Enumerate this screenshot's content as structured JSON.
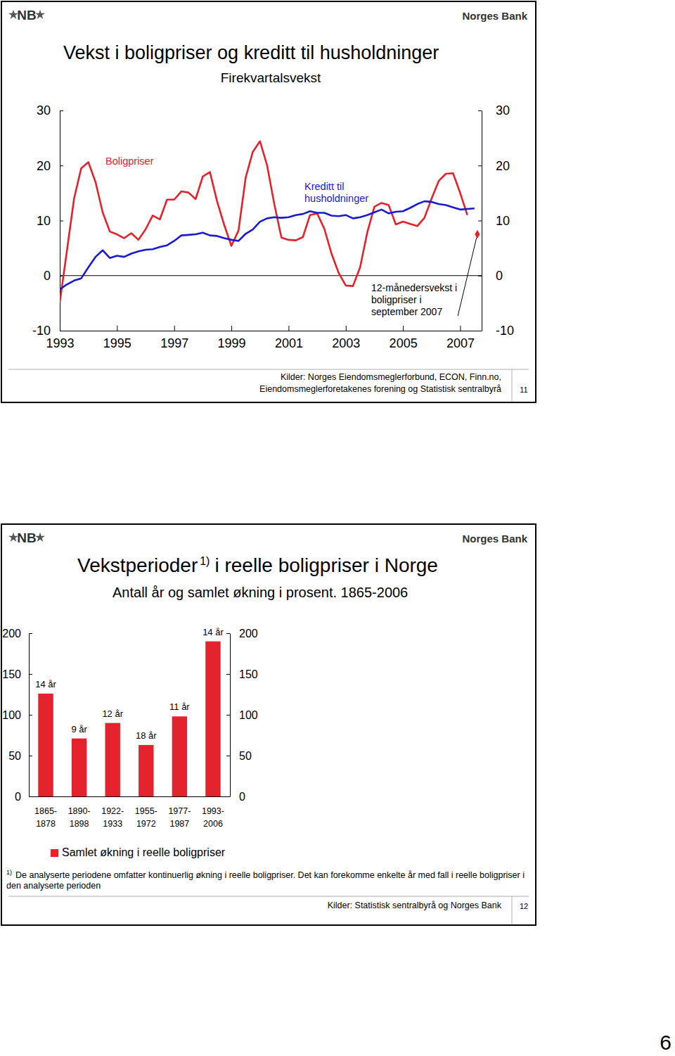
{
  "page_number": 6,
  "chart_data": [
    {
      "type": "line",
      "logo": "NB",
      "header": "Norges Bank",
      "title": "Vekst i boligpriser og kreditt til husholdninger",
      "subtitle": "Firekvartalsvekst",
      "x": [
        1993,
        1993.25,
        1993.5,
        1993.75,
        1994,
        1994.25,
        1994.5,
        1994.75,
        1995,
        1995.25,
        1995.5,
        1995.75,
        1996,
        1996.25,
        1996.5,
        1996.75,
        1997,
        1997.25,
        1997.5,
        1997.75,
        1998,
        1998.25,
        1998.5,
        1998.75,
        1999,
        1999.25,
        1999.5,
        1999.75,
        2000,
        2000.25,
        2000.5,
        2000.75,
        2001,
        2001.25,
        2001.5,
        2001.75,
        2002,
        2002.25,
        2002.5,
        2002.75,
        2003,
        2003.25,
        2003.5,
        2003.75,
        2004,
        2004.25,
        2004.5,
        2004.75,
        2005,
        2005.25,
        2005.5,
        2005.75,
        2006,
        2006.25,
        2006.5,
        2006.75,
        2007,
        2007.25,
        2007.5
      ],
      "xlim": [
        1993,
        2007.75
      ],
      "xticks": [
        1993,
        1995,
        1997,
        1999,
        2001,
        2003,
        2005,
        2007
      ],
      "ylim": [
        -10,
        30
      ],
      "yticks": [
        -10,
        0,
        10,
        20,
        30
      ],
      "y2lim": [
        -10,
        30
      ],
      "y2ticks": [
        -10,
        0,
        10,
        20,
        30
      ],
      "series": [
        {
          "name": "Boligpriser",
          "color": "#e3222b",
          "values": [
            -4.9,
            4.5,
            14.0,
            19.5,
            20.6,
            17.0,
            11.5,
            8.0,
            7.5,
            6.8,
            7.7,
            6.5,
            8.4,
            10.9,
            10.2,
            13.8,
            13.8,
            15.3,
            15.1,
            13.9,
            18.0,
            18.8,
            13.5,
            9.2,
            5.4,
            8.2,
            17.8,
            22.5,
            24.4,
            20.0,
            13.0,
            6.9,
            6.5,
            6.4,
            7.0,
            11.0,
            11.3,
            8.5,
            4.0,
            0.5,
            -1.8,
            -1.9,
            1.5,
            7.8,
            12.5,
            13.2,
            12.8,
            9.3,
            9.8,
            9.4,
            9.0,
            10.5,
            14.0,
            17.2,
            18.5,
            18.6,
            15.0,
            11.0,
            null
          ]
        },
        {
          "name": "Kreditt til husholdninger",
          "color": "#1a1ad1",
          "values": [
            -2.5,
            -1.6,
            -0.9,
            -0.5,
            1.5,
            3.4,
            4.6,
            3.2,
            3.6,
            3.4,
            4.0,
            4.4,
            4.7,
            4.8,
            5.2,
            5.5,
            6.3,
            7.3,
            7.4,
            7.5,
            7.8,
            7.3,
            7.2,
            6.8,
            6.5,
            6.3,
            7.6,
            8.4,
            9.8,
            10.4,
            10.6,
            10.5,
            10.6,
            11.0,
            11.2,
            11.7,
            11.4,
            11.4,
            10.9,
            10.8,
            11.0,
            10.4,
            10.6,
            11.0,
            11.5,
            12.0,
            11.3,
            11.6,
            11.7,
            12.3,
            13.0,
            13.5,
            13.4,
            13.0,
            12.8,
            12.4,
            12.0,
            12.1,
            12.2
          ]
        },
        {
          "name": "12-månedersvekst i boligpriser i september 2007",
          "color": "#e3222b",
          "type": "scatter",
          "marker": "diamond",
          "x": [
            2007.6
          ],
          "values": [
            7.5
          ]
        }
      ],
      "source": [
        "Kilder: Norges Eiendomsmeglerforbund, ECON, Finn.no,",
        "Eiendomsmeglerforetakenes forening og Statistisk sentralbyrå"
      ],
      "slide_number": 11
    },
    {
      "type": "bar",
      "logo": "NB",
      "header": "Norges Bank",
      "title": [
        "Vekstperioder",
        "1)",
        "i reelle boligpriser i Norge"
      ],
      "subtitle": "Antall år og samlet økning i prosent. 1865-2006",
      "categories": [
        "1865-1878",
        "1890-1898",
        "1922-1933",
        "1955-1972",
        "1977-1987",
        "1993-2006"
      ],
      "series": [
        {
          "name": "Samlet økning i reelle boligpriser",
          "color": "#e3222b",
          "values": [
            126,
            71,
            90,
            63,
            98,
            190
          ]
        }
      ],
      "bar_labels": [
        "14 år",
        "9 år",
        "12 år",
        "18 år",
        "11 år",
        "14 år"
      ],
      "ylim": [
        0,
        200
      ],
      "yticks": [
        0,
        50,
        100,
        150,
        200
      ],
      "y2lim": [
        0,
        200
      ],
      "y2ticks": [
        0,
        50,
        100,
        150,
        200
      ],
      "legend": "bottom",
      "footnote_marker": "1)",
      "footnote": "De analyserte periodene omfatter kontinuerlig økning i reelle boligpriser. Det kan forekomme enkelte år med fall i reelle boligpriser i den analyserte perioden",
      "source": [
        "Kilder: Statistisk sentralbyrå og Norges Bank"
      ],
      "slide_number": 12
    }
  ]
}
